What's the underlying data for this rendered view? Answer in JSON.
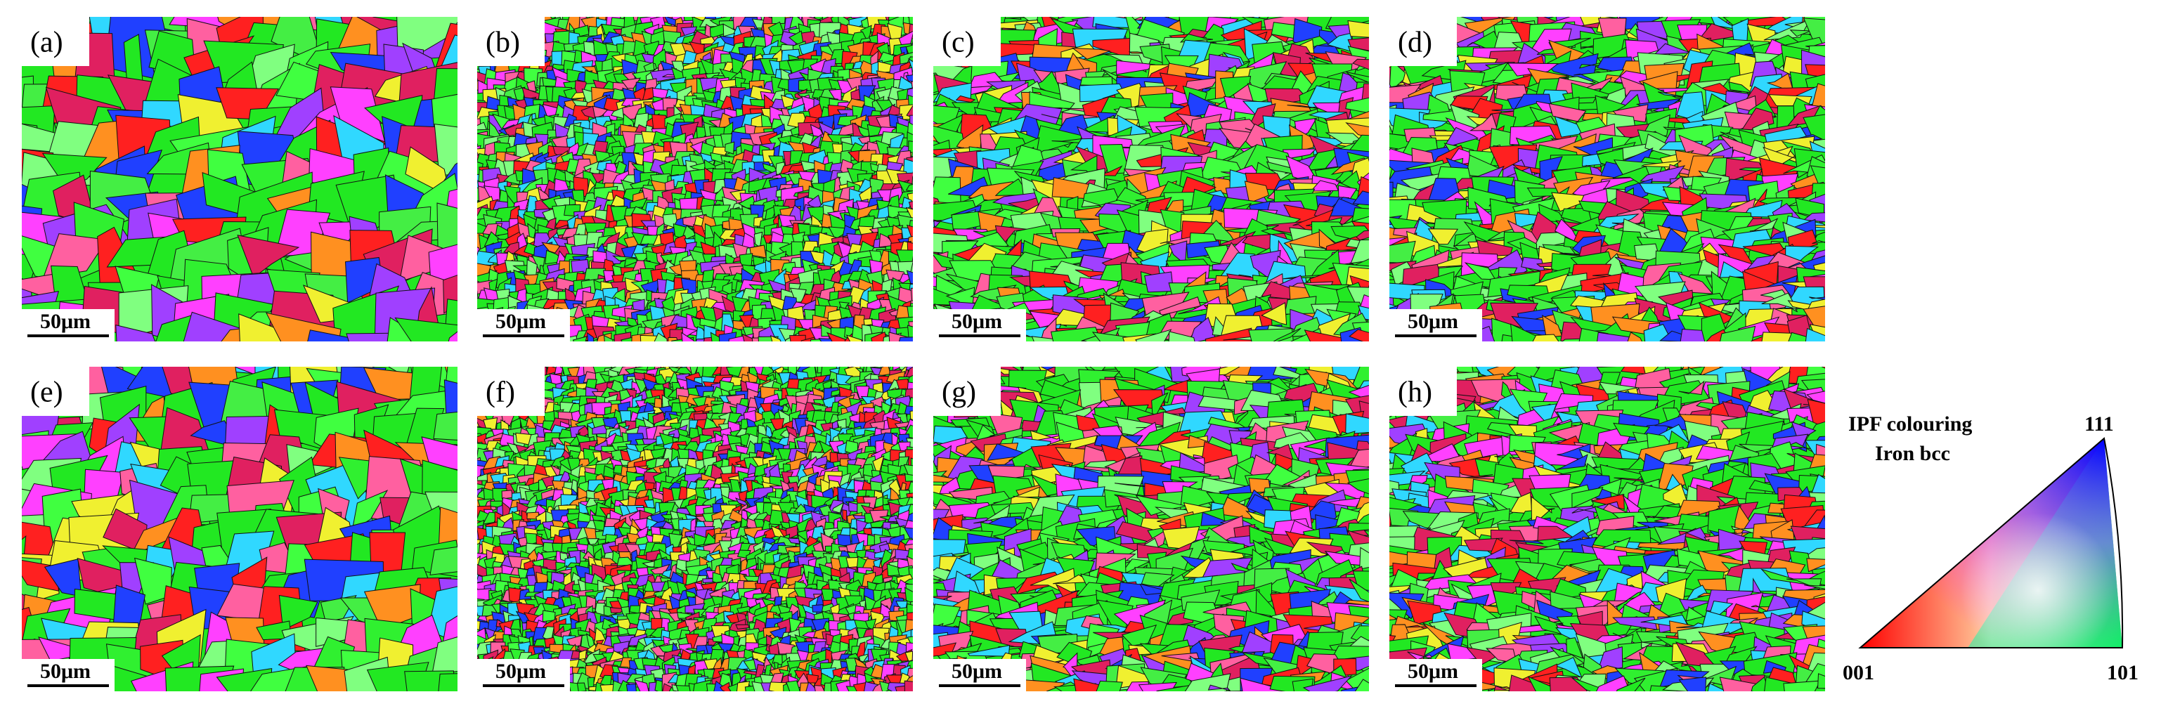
{
  "panels": [
    {
      "label": "(a)",
      "scale_bar": "50μm"
    },
    {
      "label": "(b)",
      "scale_bar": "50μm"
    },
    {
      "label": "(c)",
      "scale_bar": "50μm"
    },
    {
      "label": "(d)",
      "scale_bar": "50μm"
    },
    {
      "label": "(e)",
      "scale_bar": "50μm"
    },
    {
      "label": "(f)",
      "scale_bar": "50μm"
    },
    {
      "label": "(g)",
      "scale_bar": "50μm"
    },
    {
      "label": "(h)",
      "scale_bar": "50μm"
    }
  ],
  "legend": {
    "title": "IPF colouring",
    "phase": "Iron bcc",
    "corners": [
      "001",
      "101",
      "111"
    ]
  }
}
